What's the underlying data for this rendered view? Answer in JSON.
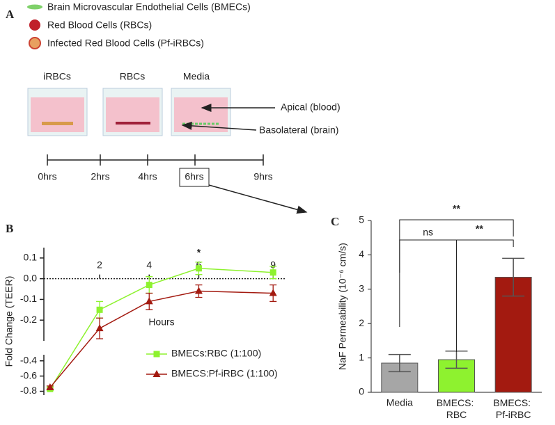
{
  "panel_a": {
    "label": "A",
    "legend": [
      "Brain Microvascular Endothelial Cells (BMECs)",
      "Red Blood Cells (RBCs)",
      "Infected Red Blood Cells (Pf-iRBCs)"
    ],
    "wells": [
      "iRBCs",
      "RBCs",
      "Media"
    ],
    "compartments": [
      "Apical (blood)",
      "Basolateral (brain)"
    ],
    "timeline": [
      "0hrs",
      "2hrs",
      "4hrs",
      "6hrs",
      "9hrs"
    ]
  },
  "chart_data": [
    {
      "panel": "B",
      "type": "line",
      "y_label": "Fold Change (TEER)",
      "x_label": "Hours",
      "x": [
        0,
        2,
        4,
        6,
        9
      ],
      "xlim": [
        -0.25,
        9.5
      ],
      "xticks": [
        2,
        4,
        6,
        9
      ],
      "y_segments": [
        {
          "ylim": [
            -0.3,
            0.15
          ],
          "yticks": [
            0.1,
            {
              "value": 0,
              "label": "0.0"
            },
            -0.1,
            -0.2
          ]
        },
        {
          "ylim": [
            -0.85,
            -0.32
          ],
          "yticks": [
            -0.4,
            -0.6,
            -0.8
          ]
        }
      ],
      "zero_line": true,
      "annotation": "*",
      "series": [
        {
          "name": "BMECs:RBC (1:100)",
          "color": "#8ef22f",
          "marker": "square",
          "values": [
            -0.77,
            -0.15,
            -0.03,
            0.05,
            0.03
          ],
          "errors": [
            0.02,
            0.04,
            0.04,
            0.03,
            0.03
          ]
        },
        {
          "name": "BMECS:Pf-iRBC (1:100)",
          "color": "#a31a10",
          "marker": "triangle",
          "values": [
            -0.75,
            -0.24,
            -0.11,
            -0.06,
            -0.07
          ],
          "errors": [
            0.02,
            0.05,
            0.04,
            0.03,
            0.04
          ]
        }
      ]
    },
    {
      "panel": "C",
      "type": "bar",
      "y_label": "NaF Permeability (10⁻⁶ cm/s)",
      "categories": [
        "Media",
        "BMECS: RBC",
        "BMECS: Pf-iRBC"
      ],
      "values": [
        0.85,
        0.95,
        3.35
      ],
      "errors": [
        0.25,
        0.25,
        0.55
      ],
      "colors": [
        "#a6a6a6",
        "#8ef22f",
        "#a31a10"
      ],
      "ylim": [
        0,
        5
      ],
      "yticks": [
        0,
        1,
        2,
        3,
        4,
        5
      ],
      "significance": [
        "**",
        "ns",
        "**"
      ]
    }
  ]
}
